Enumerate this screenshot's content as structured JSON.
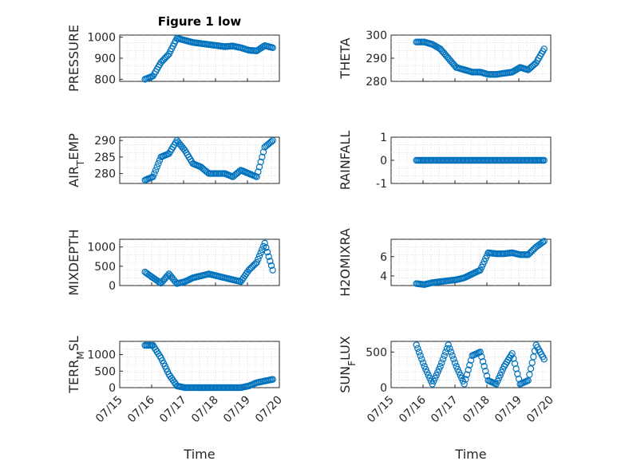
{
  "figure": {
    "title": "Figure 1 low",
    "marker_color": "#0072BD",
    "x_axis": {
      "label": "Time",
      "range": [
        "2019-07-15",
        "2019-07-20"
      ],
      "ticks": [
        "07/15",
        "07/16",
        "07/17",
        "07/18",
        "07/19",
        "07/20"
      ],
      "tick_rotation_deg": 45
    }
  },
  "chart_data": [
    {
      "type": "scatter",
      "ylabel": "PRESSURE",
      "title": "Figure 1 low",
      "ylim": [
        790,
        1010
      ],
      "yticks": [
        800,
        900,
        1000
      ],
      "x": [
        "07/15 19:00",
        "07/16 01:00",
        "07/16 07:00",
        "07/16 13:00",
        "07/16 19:00",
        "07/17 01:00",
        "07/17 07:00",
        "07/17 13:00",
        "07/17 19:00",
        "07/18 01:00",
        "07/18 07:00",
        "07/18 13:00",
        "07/18 19:00",
        "07/19 01:00",
        "07/19 07:00",
        "07/19 13:00",
        "07/19 19:00"
      ],
      "y": [
        800,
        815,
        880,
        920,
        995,
        985,
        975,
        970,
        965,
        960,
        955,
        958,
        950,
        938,
        935,
        960,
        950
      ]
    },
    {
      "type": "scatter",
      "ylabel": "THETA",
      "ylim": [
        280,
        300
      ],
      "yticks": [
        280,
        290,
        300
      ],
      "x": [
        "07/15 19:00",
        "07/16 01:00",
        "07/16 07:00",
        "07/16 13:00",
        "07/16 19:00",
        "07/17 01:00",
        "07/17 07:00",
        "07/17 13:00",
        "07/17 19:00",
        "07/18 01:00",
        "07/18 07:00",
        "07/18 13:00",
        "07/18 19:00",
        "07/19 01:00",
        "07/19 07:00",
        "07/19 13:00",
        "07/19 19:00"
      ],
      "y": [
        297,
        297,
        296,
        294,
        290,
        286,
        285,
        284,
        284,
        283,
        283,
        283.5,
        284,
        286,
        285,
        288,
        294
      ]
    },
    {
      "type": "scatter",
      "ylabel": "AIR_TEMP",
      "ylim": [
        277,
        291
      ],
      "yticks": [
        280,
        285,
        290
      ],
      "x": [
        "07/15 19:00",
        "07/16 01:00",
        "07/16 07:00",
        "07/16 13:00",
        "07/16 19:00",
        "07/17 01:00",
        "07/17 07:00",
        "07/17 13:00",
        "07/17 19:00",
        "07/18 01:00",
        "07/18 07:00",
        "07/18 13:00",
        "07/18 19:00",
        "07/19 01:00",
        "07/19 07:00",
        "07/19 13:00",
        "07/19 19:00"
      ],
      "y": [
        278,
        279,
        285,
        286,
        290,
        287,
        283,
        282,
        280,
        280,
        280,
        279,
        281,
        280,
        279,
        288,
        290
      ]
    },
    {
      "type": "scatter",
      "ylabel": "RAINFALL",
      "ylim": [
        -1,
        1
      ],
      "yticks": [
        -1,
        0,
        1
      ],
      "x": [
        "07/15 19:00",
        "07/16 01:00",
        "07/16 07:00",
        "07/16 13:00",
        "07/16 19:00",
        "07/17 01:00",
        "07/17 07:00",
        "07/17 13:00",
        "07/17 19:00",
        "07/18 01:00",
        "07/18 07:00",
        "07/18 13:00",
        "07/18 19:00",
        "07/19 01:00",
        "07/19 07:00",
        "07/19 13:00",
        "07/19 19:00"
      ],
      "y": [
        0,
        0,
        0,
        0,
        0,
        0,
        0,
        0,
        0,
        0,
        0,
        0,
        0,
        0,
        0,
        0,
        0
      ]
    },
    {
      "type": "scatter",
      "ylabel": "MIXDEPTH",
      "ylim": [
        0,
        1200
      ],
      "yticks": [
        0,
        500,
        1000
      ],
      "x": [
        "07/15 19:00",
        "07/16 01:00",
        "07/16 07:00",
        "07/16 13:00",
        "07/16 19:00",
        "07/17 01:00",
        "07/17 07:00",
        "07/17 13:00",
        "07/17 19:00",
        "07/18 01:00",
        "07/18 07:00",
        "07/18 13:00",
        "07/18 19:00",
        "07/19 01:00",
        "07/19 07:00",
        "07/19 13:00",
        "07/19 19:00"
      ],
      "y": [
        350,
        200,
        60,
        300,
        50,
        100,
        200,
        250,
        300,
        250,
        200,
        150,
        100,
        400,
        600,
        1100,
        400
      ]
    },
    {
      "type": "scatter",
      "ylabel": "H2OMIXRA",
      "ylim": [
        3,
        7.8
      ],
      "yticks": [
        4,
        6
      ],
      "x": [
        "07/15 19:00",
        "07/16 01:00",
        "07/16 07:00",
        "07/16 13:00",
        "07/16 19:00",
        "07/17 01:00",
        "07/17 07:00",
        "07/17 13:00",
        "07/17 19:00",
        "07/18 01:00",
        "07/18 07:00",
        "07/18 13:00",
        "07/18 19:00",
        "07/19 01:00",
        "07/19 07:00",
        "07/19 13:00",
        "07/19 19:00"
      ],
      "y": [
        3.2,
        3.1,
        3.3,
        3.4,
        3.5,
        3.6,
        3.8,
        4.2,
        4.6,
        6.4,
        6.3,
        6.3,
        6.4,
        6.2,
        6.2,
        7.0,
        7.6
      ]
    },
    {
      "type": "scatter",
      "ylabel": "TERR_MSL",
      "ylim": [
        0,
        1400
      ],
      "yticks": [
        0,
        500,
        1000
      ],
      "x": [
        "07/15 19:00",
        "07/16 01:00",
        "07/16 07:00",
        "07/16 13:00",
        "07/16 19:00",
        "07/17 01:00",
        "07/17 07:00",
        "07/17 13:00",
        "07/17 19:00",
        "07/18 01:00",
        "07/18 07:00",
        "07/18 13:00",
        "07/18 19:00",
        "07/19 01:00",
        "07/19 07:00",
        "07/19 13:00",
        "07/19 19:00"
      ],
      "y": [
        1280,
        1280,
        900,
        400,
        50,
        0,
        0,
        0,
        0,
        0,
        0,
        0,
        0,
        50,
        150,
        200,
        250
      ]
    },
    {
      "type": "scatter",
      "ylabel": "SUN_FLUX",
      "ylim": [
        0,
        650
      ],
      "yticks": [
        0,
        500
      ],
      "x": [
        "07/15 19:00",
        "07/16 01:00",
        "07/16 07:00",
        "07/16 13:00",
        "07/16 19:00",
        "07/17 01:00",
        "07/17 07:00",
        "07/17 13:00",
        "07/17 19:00",
        "07/18 01:00",
        "07/18 07:00",
        "07/18 13:00",
        "07/18 19:00",
        "07/19 01:00",
        "07/19 07:00",
        "07/19 13:00",
        "07/19 19:00"
      ],
      "y": [
        600,
        300,
        50,
        300,
        600,
        300,
        50,
        450,
        500,
        100,
        50,
        300,
        480,
        50,
        100,
        600,
        400
      ]
    }
  ]
}
